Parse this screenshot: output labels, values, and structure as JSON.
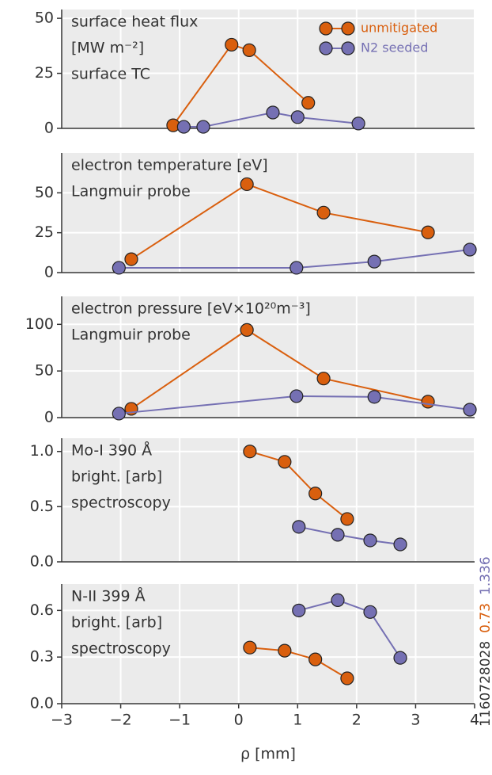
{
  "annotations": [
    {
      "text": "1160728028",
      "color": "#333333"
    },
    {
      "text": "0.73",
      "color": "#d95f0e"
    },
    {
      "text": "1.336",
      "color": "#7570b3"
    }
  ],
  "chart_data": [
    {
      "type": "line",
      "text_lines": [
        "surface heat flux",
        "[MW m⁻²]",
        "surface TC"
      ],
      "legend": "upper right",
      "series": [
        {
          "name": "unmitigated",
          "color": "#d95f0e",
          "x": [
            -1.11,
            -0.12,
            0.18,
            1.18
          ],
          "values": [
            1.4,
            38,
            35.5,
            11.6
          ]
        },
        {
          "name": "N2 seeded",
          "color": "#7570b3",
          "x": [
            -0.93,
            -0.6,
            0.58,
            1.0,
            2.03
          ],
          "values": [
            0.7,
            0.7,
            7.2,
            5.1,
            2.2
          ]
        }
      ],
      "xlim": [
        -3,
        4
      ],
      "xticks": [
        -3,
        -2,
        -1,
        0,
        1,
        2,
        3,
        4
      ],
      "ylim": [
        0,
        54
      ],
      "yticks": [
        0,
        25,
        50
      ],
      "grid": true
    },
    {
      "type": "line",
      "text_lines": [
        "electron temperature [eV]",
        "Langmuir probe"
      ],
      "series": [
        {
          "color": "#d95f0e",
          "x": [
            -1.82,
            0.14,
            1.44,
            3.21
          ],
          "values": [
            8.4,
            55.4,
            37.6,
            25.2
          ]
        },
        {
          "color": "#7570b3",
          "x": [
            -2.03,
            0.98,
            2.3,
            3.92
          ],
          "values": [
            3,
            3,
            6.9,
            14.4
          ]
        }
      ],
      "xlim": [
        -3,
        4
      ],
      "xticks": [
        -3,
        -2,
        -1,
        0,
        1,
        2,
        3,
        4
      ],
      "ylim": [
        0,
        75
      ],
      "yticks": [
        0,
        25,
        50
      ],
      "grid": true
    },
    {
      "type": "line",
      "text_lines": [
        "electron pressure [eV×10²⁰m⁻³]",
        "Langmuir probe"
      ],
      "series": [
        {
          "color": "#d95f0e",
          "x": [
            -1.82,
            0.14,
            1.44,
            3.21
          ],
          "values": [
            9.4,
            94,
            41.9,
            17.1
          ]
        },
        {
          "color": "#7570b3",
          "x": [
            -2.03,
            0.98,
            2.3,
            3.92
          ],
          "values": [
            4.3,
            23,
            22.2,
            8.5
          ]
        }
      ],
      "xlim": [
        -3,
        4
      ],
      "xticks": [
        -3,
        -2,
        -1,
        0,
        1,
        2,
        3,
        4
      ],
      "ylim": [
        0,
        130
      ],
      "yticks": [
        0,
        50,
        100
      ],
      "grid": true
    },
    {
      "type": "line",
      "text_lines": [
        "Mo-I 390 Å",
        "bright. [arb]",
        "spectroscopy"
      ],
      "series": [
        {
          "color": "#d95f0e",
          "x": [
            0.19,
            0.78,
            1.3,
            1.84
          ],
          "values": [
            1.0,
            0.906,
            0.619,
            0.388
          ]
        },
        {
          "color": "#7570b3",
          "x": [
            1.02,
            1.68,
            2.23,
            2.74
          ],
          "values": [
            0.317,
            0.245,
            0.194,
            0.158
          ]
        }
      ],
      "xlim": [
        -3,
        4
      ],
      "xticks": [
        -3,
        -2,
        -1,
        0,
        1,
        2,
        3,
        4
      ],
      "ylim": [
        0,
        1.12
      ],
      "yticks": [
        {
          "value": 0,
          "label": "0.0"
        },
        0.5,
        {
          "value": 1,
          "label": "1.0"
        }
      ],
      "grid": true
    },
    {
      "type": "line",
      "text_lines": [
        "N-II 399 Å",
        "bright. [arb]",
        "spectroscopy"
      ],
      "xlabel": "ρ [mm]",
      "series": [
        {
          "color": "#d95f0e",
          "x": [
            0.19,
            0.78,
            1.3,
            1.84
          ],
          "values": [
            0.361,
            0.341,
            0.285,
            0.163
          ]
        },
        {
          "color": "#7570b3",
          "x": [
            1.02,
            1.68,
            2.23,
            2.74
          ],
          "values": [
            0.6,
            0.666,
            0.59,
            0.295
          ]
        }
      ],
      "xlim": [
        -3,
        4
      ],
      "xticks": [
        {
          "value": -3,
          "label": "−3"
        },
        {
          "value": -2,
          "label": "−2"
        },
        {
          "value": -1,
          "label": "−1"
        },
        0,
        1,
        2,
        3,
        4
      ],
      "ylim": [
        0,
        0.77
      ],
      "yticks": [
        {
          "value": 0,
          "label": "0.0"
        },
        0.3,
        0.6
      ],
      "grid": true
    }
  ]
}
